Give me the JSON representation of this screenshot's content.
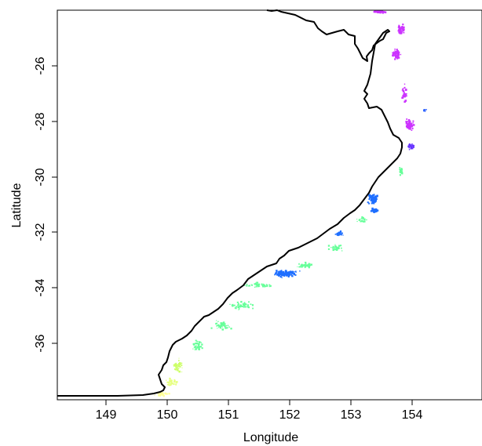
{
  "map": {
    "x_axis": {
      "label": "Longitude",
      "ticks": [
        149,
        150,
        151,
        152,
        153,
        154
      ],
      "tick_labels": [
        "149",
        "150",
        "151",
        "152",
        "153",
        "154"
      ],
      "range": [
        148.3,
        155.0
      ]
    },
    "y_axis": {
      "label": "Latitude",
      "ticks": [
        -26,
        -28,
        -30,
        -32,
        -34,
        -36
      ],
      "tick_labels": [
        "-26",
        "-28",
        "-30",
        "-32",
        "-34",
        "-36"
      ],
      "range": [
        -37.9,
        -24.3
      ]
    },
    "coastline_color": "#000000",
    "frame_color": "#000000",
    "offshore_clusters": [
      {
        "color": "#cc33ff",
        "lon": 153.4,
        "lat": -24.35,
        "spread_lon": 0.15,
        "spread_lat": 0.05,
        "count": 45
      },
      {
        "color": "#cc33ff",
        "lon": 153.72,
        "lat": -25.0,
        "spread_lon": 0.07,
        "spread_lat": 0.25,
        "count": 70
      },
      {
        "color": "#cc33ff",
        "lon": 153.65,
        "lat": -25.85,
        "spread_lon": 0.08,
        "spread_lat": 0.2,
        "count": 60
      },
      {
        "color": "#cc33ff",
        "lon": 153.78,
        "lat": -27.2,
        "spread_lon": 0.06,
        "spread_lat": 0.4,
        "count": 35
      },
      {
        "color": "#cc33ff",
        "lon": 153.85,
        "lat": -28.3,
        "spread_lon": 0.08,
        "spread_lat": 0.25,
        "count": 70
      },
      {
        "color": "#6633ff",
        "lon": 153.88,
        "lat": -29.05,
        "spread_lon": 0.06,
        "spread_lat": 0.15,
        "count": 45
      },
      {
        "color": "#3366ff",
        "lon": 154.1,
        "lat": -27.8,
        "spread_lon": 0.03,
        "spread_lat": 0.05,
        "count": 8
      },
      {
        "color": "#66ff99",
        "lon": 153.72,
        "lat": -29.9,
        "spread_lon": 0.05,
        "spread_lat": 0.2,
        "count": 25
      },
      {
        "color": "#1f6fff",
        "lon": 153.28,
        "lat": -30.9,
        "spread_lon": 0.1,
        "spread_lat": 0.22,
        "count": 110
      },
      {
        "color": "#1f6fff",
        "lon": 153.3,
        "lat": -31.3,
        "spread_lon": 0.07,
        "spread_lat": 0.1,
        "count": 60
      },
      {
        "color": "#66ff99",
        "lon": 153.1,
        "lat": -31.6,
        "spread_lon": 0.1,
        "spread_lat": 0.15,
        "count": 20
      },
      {
        "color": "#1f6fff",
        "lon": 152.75,
        "lat": -32.1,
        "spread_lon": 0.08,
        "spread_lat": 0.12,
        "count": 40
      },
      {
        "color": "#66ff99",
        "lon": 152.7,
        "lat": -32.6,
        "spread_lon": 0.15,
        "spread_lat": 0.15,
        "count": 30
      },
      {
        "color": "#66ff99",
        "lon": 152.2,
        "lat": -33.2,
        "spread_lon": 0.2,
        "spread_lat": 0.12,
        "count": 40
      },
      {
        "color": "#1f6fff",
        "lon": 151.9,
        "lat": -33.5,
        "spread_lon": 0.25,
        "spread_lat": 0.15,
        "count": 140
      },
      {
        "color": "#66ff99",
        "lon": 151.5,
        "lat": -33.9,
        "spread_lon": 0.3,
        "spread_lat": 0.12,
        "count": 50
      },
      {
        "color": "#66ff99",
        "lon": 151.2,
        "lat": -34.6,
        "spread_lon": 0.25,
        "spread_lat": 0.2,
        "count": 45
      },
      {
        "color": "#66ff99",
        "lon": 150.9,
        "lat": -35.3,
        "spread_lon": 0.2,
        "spread_lat": 0.2,
        "count": 40
      },
      {
        "color": "#66ff99",
        "lon": 150.5,
        "lat": -36.0,
        "spread_lon": 0.12,
        "spread_lat": 0.25,
        "count": 35
      },
      {
        "color": "#ccff66",
        "lon": 150.2,
        "lat": -36.7,
        "spread_lon": 0.1,
        "spread_lat": 0.3,
        "count": 40
      },
      {
        "color": "#e6ff80",
        "lon": 150.1,
        "lat": -37.3,
        "spread_lon": 0.12,
        "spread_lat": 0.2,
        "count": 35
      },
      {
        "color": "#ffff99",
        "lon": 149.95,
        "lat": -37.7,
        "spread_lon": 0.15,
        "spread_lat": 0.1,
        "count": 30
      }
    ]
  }
}
